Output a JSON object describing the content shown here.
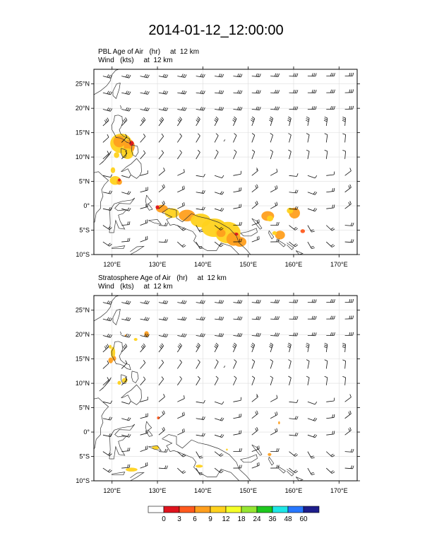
{
  "figure_title": "2014-01-12_12:00:00",
  "panels": [
    {
      "line1": {
        "var": "PBL Age of Air",
        "unit": "(hr)",
        "level": "at  12 km"
      },
      "line2": {
        "var": "Wind",
        "unit": "(kts)",
        "level": "at  12 km"
      }
    },
    {
      "line1": {
        "var": "Stratosphere Age of Air",
        "unit": "(hr)",
        "level": "at  12 km"
      },
      "line2": {
        "var": "Wind",
        "unit": "(kts)",
        "level": "at  12 km"
      }
    }
  ],
  "map_axes": {
    "lon_ticks": [
      "120°E",
      "130°E",
      "140°E",
      "150°E",
      "160°E",
      "170°E"
    ],
    "lat_ticks": [
      "25°N",
      "20°N",
      "15°N",
      "10°N",
      "5°N",
      "0°",
      "5°S",
      "10°S"
    ],
    "lon_range": [
      116,
      174
    ],
    "lat_range": [
      -10,
      28
    ]
  },
  "colorbar": {
    "labels": [
      "0",
      "3",
      "6",
      "9",
      "12",
      "18",
      "24",
      "36",
      "48",
      "60"
    ],
    "colors": [
      "#ffffff",
      "#e0141e",
      "#ff5a1e",
      "#ff9f1e",
      "#ffd21e",
      "#f5ff28",
      "#96e632",
      "#1ec81e",
      "#1ee6e6",
      "#2878ff",
      "#1e1e8c"
    ]
  }
}
